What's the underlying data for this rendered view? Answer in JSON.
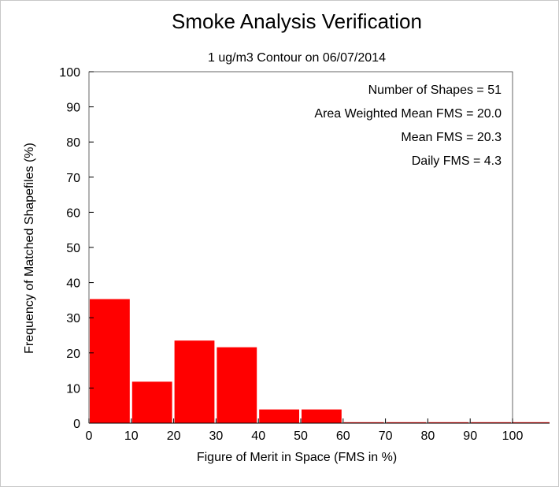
{
  "chart_data": {
    "type": "bar",
    "title": "Smoke Analysis Verification",
    "subtitle": "1 ug/m3 Contour on 06/07/2014",
    "xlabel": "Figure of Merit in Space (FMS in %)",
    "ylabel": "Frequency of Matched Shapefiles (%)",
    "xlim": [
      0,
      100
    ],
    "ylim": [
      0,
      100
    ],
    "xticks": [
      "0",
      "10",
      "20",
      "30",
      "40",
      "50",
      "60",
      "70",
      "80",
      "90",
      "100"
    ],
    "yticks": [
      "0",
      "10",
      "20",
      "30",
      "40",
      "50",
      "60",
      "70",
      "80",
      "90",
      "100"
    ],
    "bins": [
      {
        "x0": 0,
        "x1": 10,
        "value": 35.3
      },
      {
        "x0": 10,
        "x1": 20,
        "value": 11.8
      },
      {
        "x0": 20,
        "x1": 30,
        "value": 23.5
      },
      {
        "x0": 30,
        "x1": 40,
        "value": 21.6
      },
      {
        "x0": 40,
        "x1": 50,
        "value": 3.9
      },
      {
        "x0": 50,
        "x1": 60,
        "value": 3.9
      },
      {
        "x0": 60,
        "x1": 70,
        "value": 0
      },
      {
        "x0": 70,
        "x1": 80,
        "value": 0
      },
      {
        "x0": 80,
        "x1": 90,
        "value": 0
      },
      {
        "x0": 90,
        "x1": 100,
        "value": 0
      }
    ],
    "bar_color": "#ff0000",
    "grid": false,
    "annotations": [
      "Number of Shapes = 51",
      "Area Weighted Mean FMS = 20.0",
      "Mean FMS = 20.3",
      "Daily FMS = 4.3"
    ]
  }
}
